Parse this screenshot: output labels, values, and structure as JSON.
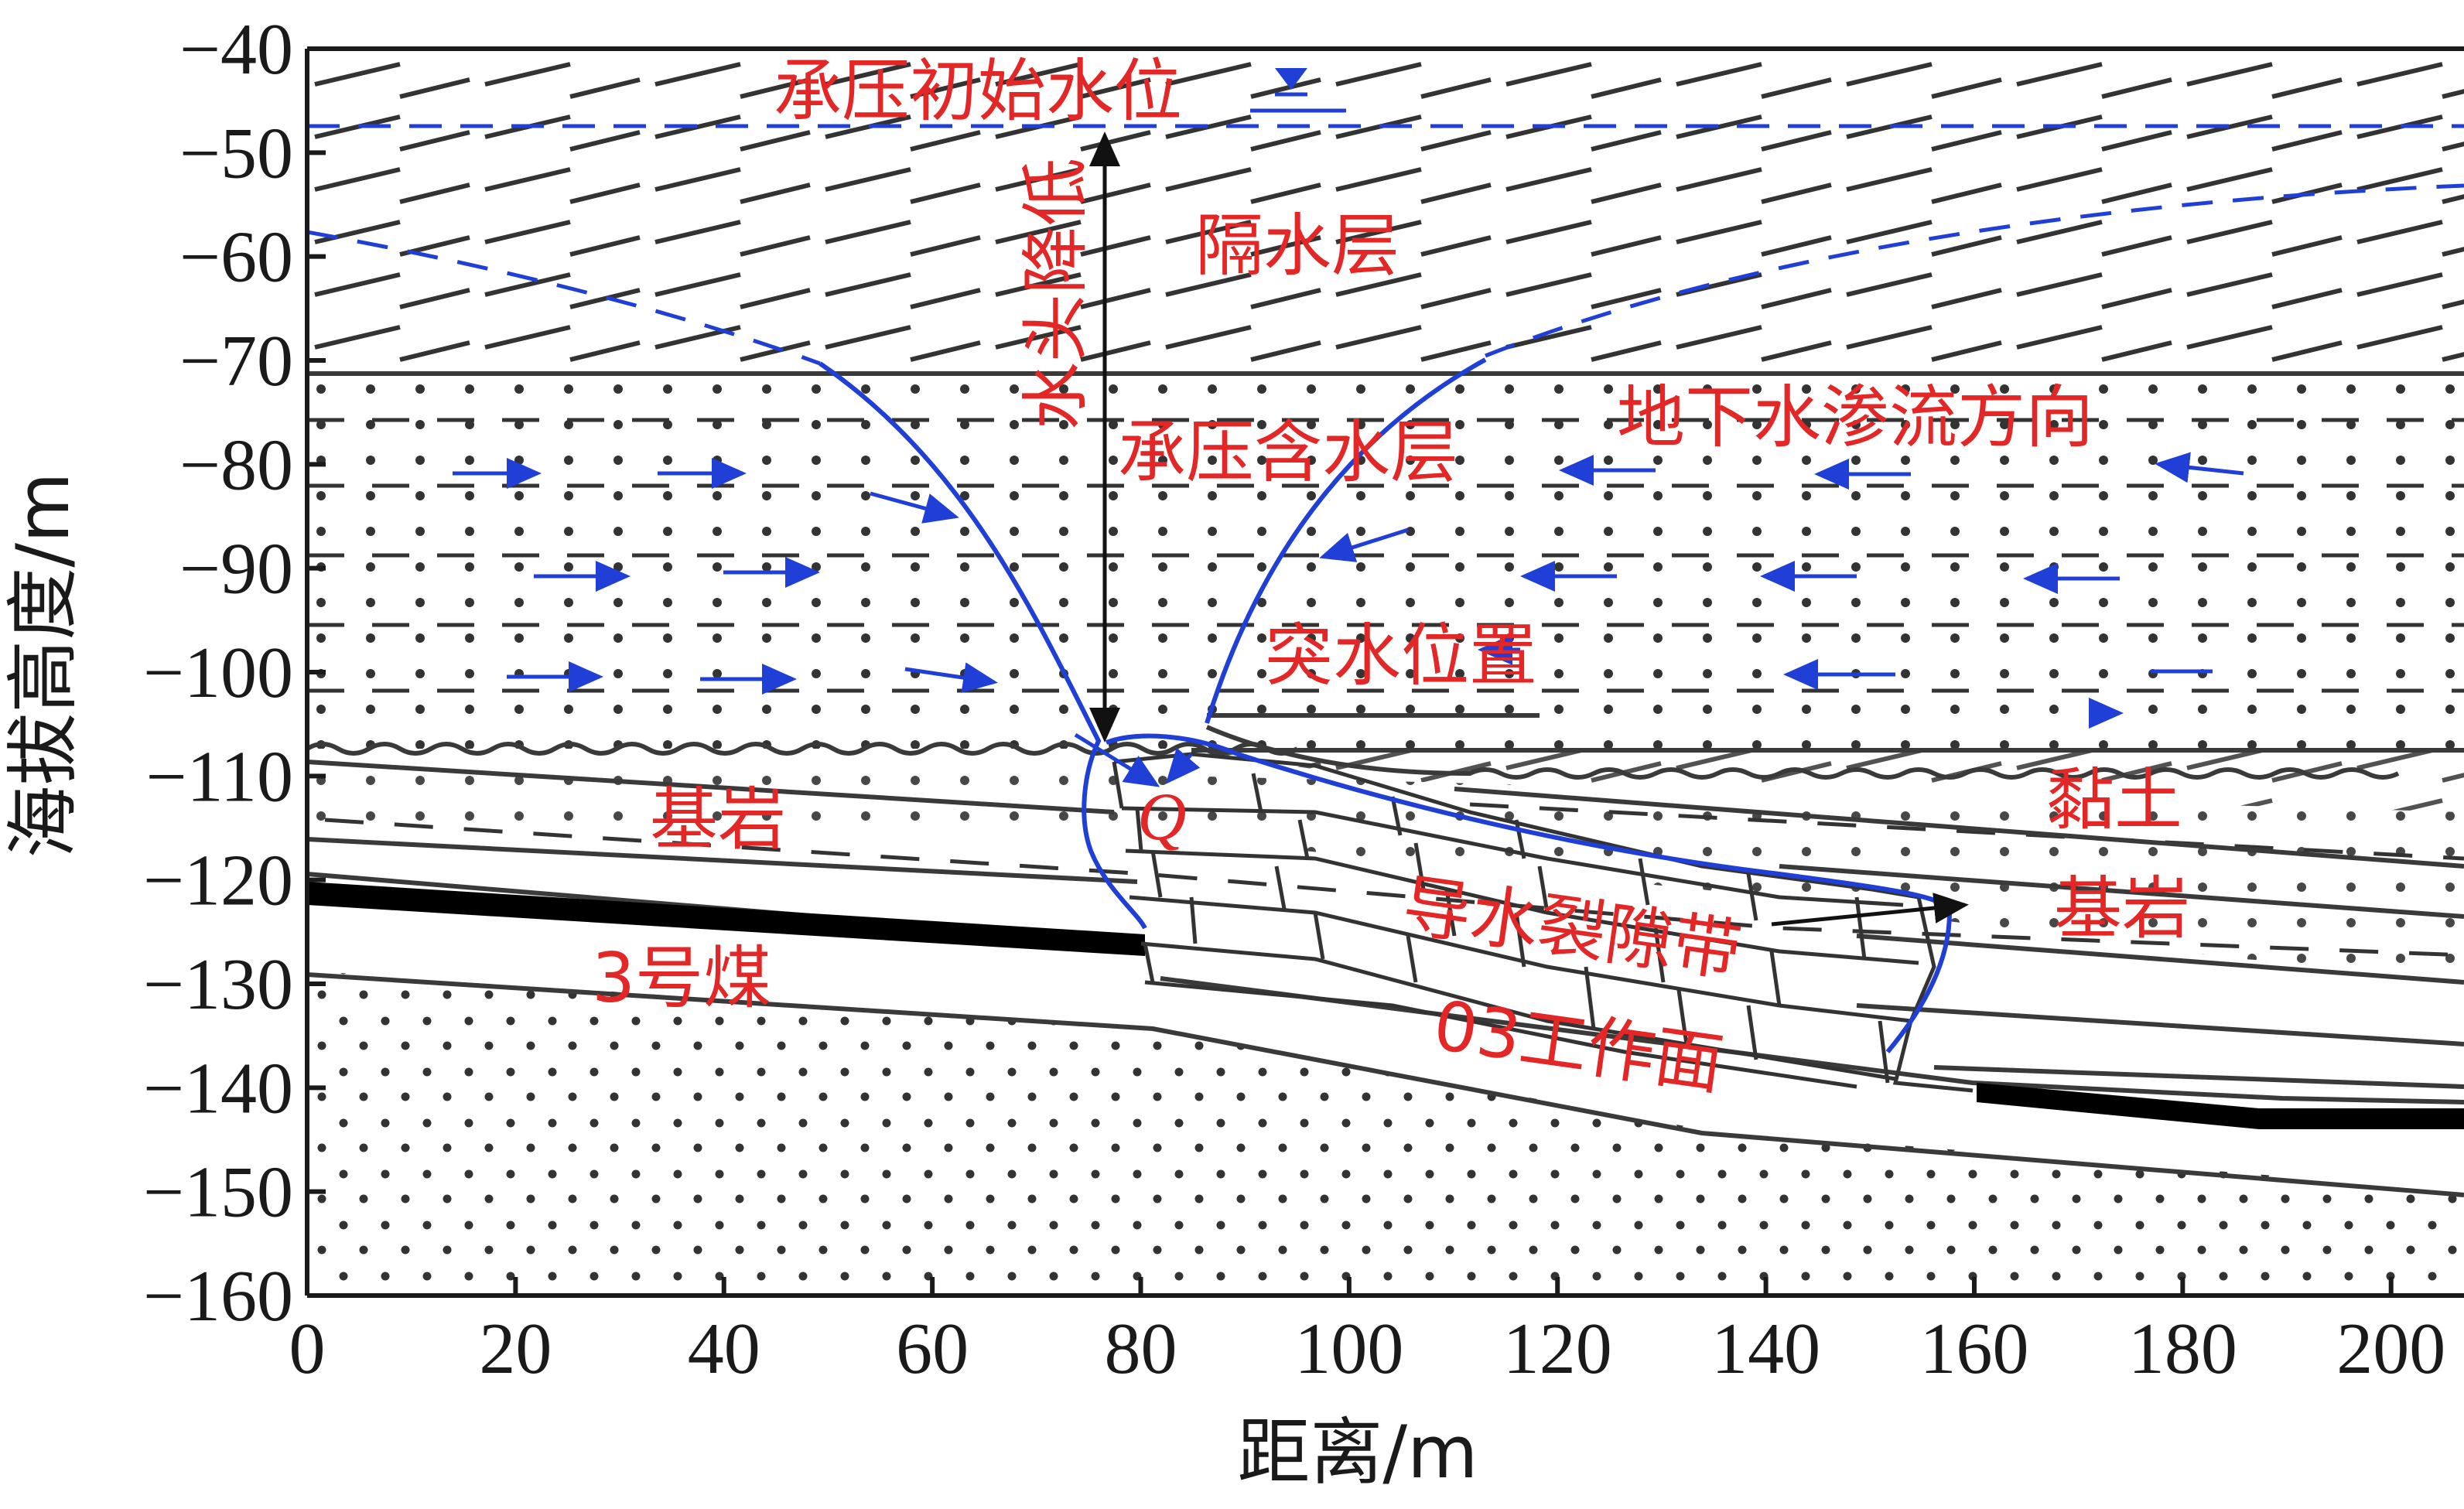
{
  "colors": {
    "label_red": "#e32626",
    "water_blue": "#1f3fd6",
    "line_dark": "#3a3a3a",
    "coal_black": "#000000"
  },
  "axes": {
    "x_title": "距离/m",
    "y_title": "海拔高度/m",
    "x_range": [
      0,
      207
    ],
    "y_range": [
      -160,
      -40
    ],
    "x_ticks": [
      "0",
      "20",
      "40",
      "60",
      "80",
      "100",
      "120",
      "140",
      "160",
      "180",
      "200"
    ],
    "y_ticks": [
      "−40",
      "−50",
      "−60",
      "−70",
      "−80",
      "−90",
      "−100",
      "−110",
      "−120",
      "−130",
      "−140",
      "−150",
      "−160"
    ]
  },
  "labels": {
    "initial_water_level": "承压初始水位",
    "aquiclude": "隔水层",
    "head_drop": "水头降低",
    "confined_aquifer": "承压含水层",
    "seepage_direction": "地下水渗流方向",
    "inrush_location": "突水位置",
    "bedrock_left": "基岩",
    "clay": "黏土",
    "bedrock_right": "基岩",
    "fracture_zone": "导水裂隙带",
    "coal_seam": "3号煤",
    "working_face": "03工作面",
    "point_q": "Q"
  },
  "geology": {
    "initial_water_level_m": -47.5,
    "aquiclude_bottom_m": -71,
    "aquifer_bottom_m": -107.5,
    "coal_seam_left_m": -121,
    "coal_seam_right_m": -142.5
  },
  "icons": {
    "water_level_marker": "inverted-triangle-water-level-icon"
  }
}
